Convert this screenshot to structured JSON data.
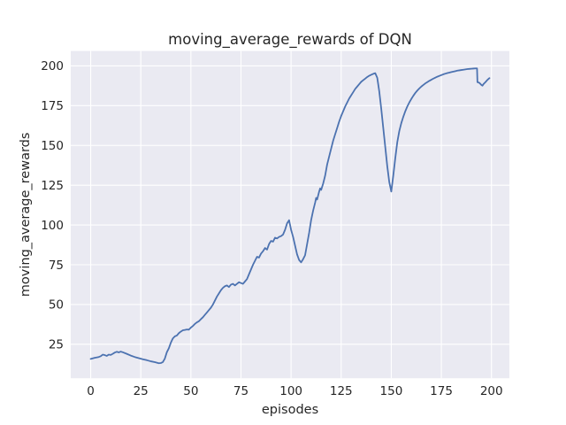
{
  "chart_data": {
    "type": "line",
    "title": "moving_average_rewards of DQN",
    "xlabel": "episodes",
    "ylabel": "moving_average_rewards",
    "x_ticks": [
      0,
      25,
      50,
      75,
      100,
      125,
      150,
      175,
      200
    ],
    "y_ticks": [
      25,
      50,
      75,
      100,
      125,
      150,
      175,
      200
    ],
    "xlim": [
      -9.95,
      208.95
    ],
    "ylim": [
      3.65,
      209.35
    ],
    "grid": true,
    "legend_position": "none",
    "colors": {
      "figure_background": "#ffffff",
      "axes_background": "#eaeaf2",
      "grid": "#ffffff",
      "line": "#4c72b0",
      "text": "#262626"
    },
    "series": [
      {
        "name": "moving_average_rewards",
        "color": "#4c72b0",
        "x": [
          0,
          2,
          4,
          5,
          6,
          7,
          8,
          9,
          10,
          11,
          12,
          13,
          14,
          15,
          16,
          18,
          20,
          22,
          24,
          26,
          28,
          30,
          32,
          34,
          35,
          36,
          37,
          38,
          39,
          40,
          41,
          42,
          43,
          44,
          45,
          46,
          47,
          48,
          49,
          50,
          51,
          52,
          53,
          54,
          55,
          56,
          57,
          58,
          59,
          60,
          61,
          62,
          63,
          64,
          65,
          66,
          67,
          68,
          69,
          70,
          71,
          72,
          73,
          74,
          75,
          76,
          77,
          78,
          79,
          80,
          81,
          82,
          83,
          84,
          85,
          86,
          87,
          88,
          89,
          90,
          91,
          92,
          93,
          94,
          95,
          96,
          97,
          98,
          99,
          100,
          101,
          102,
          103,
          104,
          105,
          106,
          107,
          108,
          109,
          110,
          111,
          112,
          112.5,
          113,
          114,
          114.5,
          115,
          116,
          117,
          118,
          119,
          120,
          121,
          122,
          123,
          124,
          125,
          126,
          127,
          128,
          129,
          130,
          131,
          132,
          133,
          134,
          135,
          136,
          137,
          138,
          139,
          140,
          141,
          142,
          143,
          144,
          145,
          146,
          147,
          148,
          149,
          150,
          151,
          152,
          153,
          154,
          155,
          156,
          157,
          158,
          159,
          160,
          161,
          162,
          163,
          164,
          165,
          166,
          167,
          168,
          169,
          170,
          171,
          172,
          173,
          174,
          175,
          176,
          177,
          178,
          179,
          180,
          181,
          182,
          183,
          184,
          185,
          186,
          187,
          188,
          189,
          190,
          191,
          192,
          192.8,
          193,
          194,
          195,
          195.5,
          196,
          197,
          198,
          199
        ],
        "y": [
          15.8,
          16.5,
          17,
          17.5,
          18.5,
          18.2,
          17.7,
          18.5,
          18.3,
          19,
          19.8,
          20.3,
          19.9,
          20.4,
          20,
          19,
          17.9,
          17,
          16.3,
          15.6,
          15,
          14.3,
          13.8,
          13.1,
          13.2,
          13.8,
          16,
          20,
          22.5,
          26,
          28.7,
          30,
          30.5,
          32,
          33,
          33.8,
          34,
          34.3,
          34.2,
          35.5,
          36.5,
          37.8,
          38.8,
          39.5,
          40.8,
          42,
          43.5,
          45,
          46.5,
          48,
          50,
          52.5,
          55,
          57,
          59,
          60.5,
          61.5,
          62,
          61,
          62.5,
          63,
          62,
          63,
          64,
          63.5,
          63,
          64.5,
          66,
          69,
          72,
          75,
          77.5,
          80,
          79.5,
          82,
          83.5,
          85.5,
          84.5,
          88,
          90,
          89.5,
          92,
          91.5,
          92.5,
          93,
          94,
          97,
          101,
          103,
          97,
          92.5,
          87,
          81.5,
          78,
          76.5,
          78.5,
          81,
          88,
          95,
          103,
          109,
          114,
          117,
          116,
          121,
          123,
          122,
          126,
          131,
          138,
          143,
          148,
          153,
          157,
          161,
          165,
          168.5,
          171.5,
          174.5,
          177,
          179.5,
          181.5,
          183.5,
          185.5,
          187,
          188.5,
          190,
          191,
          192,
          193,
          193.8,
          194.4,
          195,
          195.4,
          192.5,
          184,
          173,
          161,
          149,
          137,
          127,
          121,
          131,
          142,
          152,
          159,
          164,
          168,
          171.5,
          174.5,
          177,
          179.2,
          181.2,
          183,
          184.5,
          185.8,
          187,
          188,
          189,
          189.8,
          190.6,
          191.3,
          192,
          192.6,
          193.2,
          193.7,
          194.2,
          194.7,
          195.1,
          195.5,
          195.8,
          196.1,
          196.4,
          196.7,
          197,
          197.2,
          197.4,
          197.6,
          197.8,
          198,
          198.1,
          198.2,
          198.3,
          198.4,
          198.4,
          189.8,
          189.3,
          188,
          187.6,
          188.5,
          189.8,
          191.2,
          192.3
        ]
      }
    ]
  }
}
